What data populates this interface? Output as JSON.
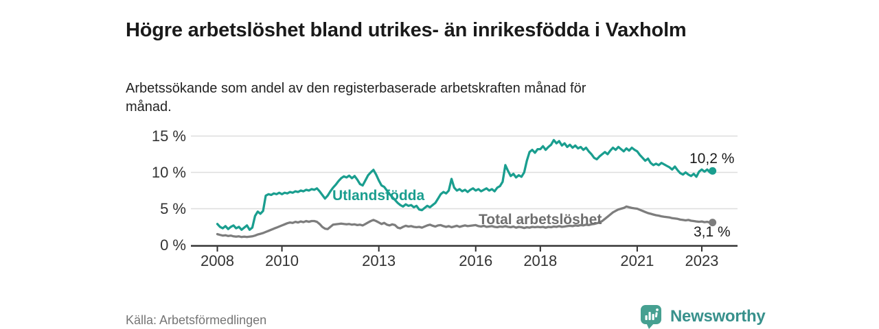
{
  "header": {
    "title": "Högre arbetslöshet bland utrikes- än inrikesfödda i Vaxholm",
    "subtitle": "Arbetssökande som andel av den registerbaserade arbetskraften månad för månad."
  },
  "footer": {
    "source": "Källa: Arbetsförmedlingen",
    "brand": "Newsworthy"
  },
  "colors": {
    "accent_teal": "#1A9E8F",
    "line_gray": "#7D7D7D",
    "label_gray": "#6E6E6E",
    "text_dark": "#1A1A1A",
    "axis_text": "#333333",
    "gridline": "#DDDDDD",
    "axis_line": "#2B2B2B",
    "source_text": "#757575",
    "brand_teal": "#38918C"
  },
  "chart_data": {
    "type": "line",
    "unit": "%",
    "x_start": "2008-01",
    "x_freq": "monthly",
    "x_tick_labels": [
      "2008",
      "2010",
      "2013",
      "2016",
      "2018",
      "2021",
      "2023"
    ],
    "x_tick_years": [
      2008,
      2010,
      2013,
      2016,
      2018,
      2021,
      2023
    ],
    "y_tick_labels": [
      "0 %",
      "5 %",
      "10 %",
      "15 %"
    ],
    "y_tick_values": [
      0,
      5,
      10,
      15
    ],
    "ylim": [
      0,
      16
    ],
    "grid": "horizontal",
    "legend_position": "inline-labels",
    "series": [
      {
        "name": "Utlandsfödda",
        "color": "#1A9E8F",
        "end_label": "10,2 %",
        "last_value": 10.2,
        "values": [
          2.9,
          2.5,
          2.3,
          2.6,
          2.2,
          2.5,
          2.7,
          2.3,
          2.5,
          2.1,
          2.4,
          2.7,
          2.1,
          2.4,
          4.0,
          4.6,
          4.3,
          4.7,
          6.8,
          7.0,
          6.9,
          7.1,
          7.0,
          7.2,
          7.0,
          7.2,
          7.1,
          7.3,
          7.2,
          7.4,
          7.3,
          7.5,
          7.4,
          7.6,
          7.5,
          7.7,
          7.6,
          7.8,
          7.4,
          6.9,
          6.4,
          6.8,
          7.4,
          7.9,
          8.3,
          8.8,
          9.2,
          9.45,
          9.3,
          9.55,
          9.2,
          9.5,
          9.0,
          8.4,
          8.2,
          8.9,
          9.6,
          10.0,
          10.35,
          9.7,
          8.9,
          8.2,
          8.0,
          7.5,
          7.0,
          6.6,
          6.2,
          5.8,
          5.5,
          5.3,
          5.6,
          5.4,
          5.5,
          5.2,
          5.4,
          4.9,
          4.8,
          5.1,
          5.4,
          5.2,
          5.5,
          5.8,
          6.4,
          7.0,
          7.3,
          7.1,
          7.5,
          9.1,
          7.9,
          7.5,
          7.7,
          7.4,
          7.6,
          7.3,
          7.6,
          7.8,
          7.5,
          7.7,
          7.4,
          7.6,
          7.8,
          7.5,
          7.7,
          7.4,
          7.9,
          8.1,
          8.7,
          11.0,
          10.2,
          9.5,
          9.8,
          9.3,
          9.6,
          9.4,
          10.0,
          11.6,
          12.8,
          13.1,
          12.7,
          13.2,
          13.2,
          13.6,
          13.1,
          13.5,
          13.8,
          14.45,
          14.0,
          14.3,
          13.7,
          14.0,
          13.5,
          13.8,
          13.4,
          13.7,
          13.3,
          13.5,
          13.1,
          13.4,
          12.9,
          12.5,
          12.0,
          11.8,
          12.2,
          12.5,
          12.8,
          12.5,
          13.0,
          13.4,
          13.1,
          13.5,
          13.2,
          12.9,
          13.3,
          13.0,
          13.4,
          13.1,
          12.9,
          12.4,
          12.0,
          11.6,
          11.9,
          11.3,
          11.0,
          11.2,
          11.0,
          11.3,
          11.1,
          10.9,
          10.7,
          10.4,
          10.8,
          10.3,
          9.9,
          9.7,
          10.0,
          9.7,
          9.5,
          9.8,
          9.4,
          10.1,
          10.4,
          10.1,
          10.4,
          10.0,
          10.2
        ]
      },
      {
        "name": "Total arbetslöshet",
        "color": "#7D7D7D",
        "end_label": "3,1 %",
        "last_value": 3.1,
        "values": [
          1.5,
          1.4,
          1.3,
          1.35,
          1.25,
          1.3,
          1.2,
          1.15,
          1.2,
          1.1,
          1.15,
          1.1,
          1.15,
          1.2,
          1.3,
          1.45,
          1.55,
          1.65,
          1.8,
          1.95,
          2.1,
          2.25,
          2.4,
          2.55,
          2.7,
          2.85,
          3.0,
          3.1,
          3.05,
          3.2,
          3.1,
          3.25,
          3.15,
          3.3,
          3.2,
          3.3,
          3.3,
          3.2,
          2.9,
          2.5,
          2.25,
          2.2,
          2.5,
          2.8,
          2.85,
          2.9,
          2.95,
          2.9,
          2.85,
          2.9,
          2.8,
          2.85,
          2.75,
          2.8,
          2.7,
          2.9,
          3.1,
          3.3,
          3.45,
          3.3,
          3.1,
          2.9,
          3.05,
          2.8,
          2.7,
          2.85,
          2.75,
          2.4,
          2.3,
          2.5,
          2.65,
          2.55,
          2.6,
          2.5,
          2.45,
          2.5,
          2.4,
          2.55,
          2.7,
          2.8,
          2.65,
          2.55,
          2.7,
          2.75,
          2.6,
          2.5,
          2.6,
          2.45,
          2.55,
          2.65,
          2.5,
          2.6,
          2.7,
          2.6,
          2.65,
          2.7,
          2.75,
          2.6,
          2.55,
          2.65,
          2.5,
          2.55,
          2.6,
          2.5,
          2.45,
          2.55,
          2.5,
          2.6,
          2.5,
          2.45,
          2.55,
          2.4,
          2.5,
          2.45,
          2.35,
          2.45,
          2.4,
          2.5,
          2.45,
          2.5,
          2.45,
          2.5,
          2.4,
          2.5,
          2.45,
          2.55,
          2.5,
          2.6,
          2.5,
          2.55,
          2.6,
          2.65,
          2.6,
          2.7,
          2.65,
          2.75,
          2.7,
          2.8,
          2.75,
          2.85,
          2.9,
          3.0,
          3.1,
          3.3,
          3.6,
          3.9,
          4.2,
          4.5,
          4.7,
          4.9,
          5.0,
          5.1,
          5.3,
          5.2,
          5.1,
          5.05,
          5.0,
          4.85,
          4.7,
          4.55,
          4.4,
          4.3,
          4.2,
          4.1,
          4.05,
          3.95,
          3.9,
          3.85,
          3.8,
          3.7,
          3.65,
          3.6,
          3.5,
          3.45,
          3.4,
          3.45,
          3.35,
          3.3,
          3.25,
          3.2,
          3.25,
          3.15,
          3.2,
          3.1,
          3.1
        ]
      }
    ]
  }
}
